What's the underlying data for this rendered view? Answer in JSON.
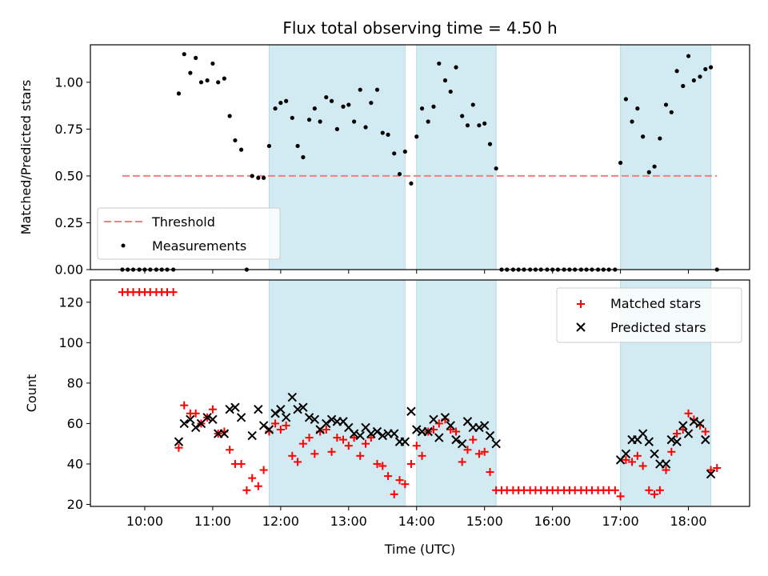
{
  "chart_data": [
    {
      "type": "scatter",
      "title": "Flux total observing time = 4.50 h",
      "xlabel": "",
      "ylabel": "Matched/Predicted stars",
      "xlim": [
        9.2,
        18.9
      ],
      "ylim": [
        0.0,
        1.2
      ],
      "yticks": [
        0.0,
        0.25,
        0.5,
        0.75,
        1.0
      ],
      "ytick_labels": [
        "0.00",
        "0.25",
        "0.50",
        "0.75",
        "1.00"
      ],
      "xticks": [
        10,
        11,
        12,
        13,
        14,
        15,
        16,
        17,
        18
      ],
      "legend": {
        "position": "bottom-left",
        "entries": [
          "Threshold",
          "Measurements"
        ]
      },
      "threshold": {
        "name": "Threshold",
        "value": 0.5,
        "x_range": [
          9.67,
          18.42
        ],
        "color": "#f08080"
      },
      "series": [
        {
          "name": "Measurements",
          "color": "#000000",
          "x": [
            9.67,
            9.75,
            9.83,
            9.92,
            10.0,
            10.08,
            10.17,
            10.25,
            10.33,
            10.42,
            10.5,
            10.58,
            10.67,
            10.75,
            10.83,
            10.92,
            11.0,
            11.08,
            11.17,
            11.25,
            11.33,
            11.42,
            11.5,
            11.58,
            11.67,
            11.75,
            11.83,
            11.92,
            12.0,
            12.08,
            12.17,
            12.25,
            12.33,
            12.42,
            12.5,
            12.58,
            12.67,
            12.75,
            12.83,
            12.92,
            13.0,
            13.08,
            13.17,
            13.25,
            13.33,
            13.42,
            13.5,
            13.58,
            13.67,
            13.75,
            13.83,
            13.92,
            14.0,
            14.08,
            14.17,
            14.25,
            14.33,
            14.42,
            14.5,
            14.58,
            14.67,
            14.75,
            14.83,
            14.92,
            15.0,
            15.08,
            15.17,
            15.25,
            15.33,
            15.42,
            15.5,
            15.58,
            15.67,
            15.75,
            15.83,
            15.92,
            16.0,
            16.08,
            16.17,
            16.25,
            16.33,
            16.42,
            16.5,
            16.58,
            16.67,
            16.75,
            16.83,
            16.92,
            17.0,
            17.08,
            17.17,
            17.25,
            17.33,
            17.42,
            17.5,
            17.58,
            17.67,
            17.75,
            17.83,
            17.92,
            18.0,
            18.08,
            18.17,
            18.25,
            18.33,
            18.42
          ],
          "y": [
            0,
            0,
            0,
            0,
            0,
            0,
            0,
            0,
            0,
            0,
            0.94,
            1.15,
            1.05,
            1.13,
            1.0,
            1.01,
            1.1,
            1.0,
            1.02,
            0.82,
            0.69,
            0.64,
            0.0,
            0.5,
            0.49,
            0.49,
            0.66,
            0.86,
            0.89,
            0.9,
            0.81,
            0.66,
            0.6,
            0.8,
            0.86,
            0.79,
            0.92,
            0.9,
            0.75,
            0.87,
            0.88,
            0.79,
            0.96,
            0.76,
            0.89,
            0.96,
            0.73,
            0.72,
            0.62,
            0.51,
            0.63,
            0.46,
            0.71,
            0.86,
            0.79,
            0.87,
            1.1,
            1.01,
            0.95,
            1.08,
            0.82,
            0.77,
            0.88,
            0.77,
            0.78,
            0.67,
            0.54,
            0,
            0,
            0,
            0,
            0,
            0,
            0,
            0,
            0,
            0,
            0,
            0,
            0,
            0,
            0,
            0,
            0,
            0,
            0,
            0,
            0,
            0.57,
            0.91,
            0.79,
            0.86,
            0.71,
            0.52,
            0.55,
            0.7,
            0.88,
            0.84,
            1.06,
            0.98,
            1.14,
            1.01,
            1.03,
            1.07,
            1.08,
            0.0
          ]
        }
      ],
      "shaded_regions": [
        [
          11.83,
          13.83
        ],
        [
          14.0,
          15.17
        ],
        [
          17.0,
          18.33
        ]
      ],
      "shade_color": "#add8e6"
    },
    {
      "type": "scatter",
      "title": "",
      "xlabel": "Time (UTC)",
      "ylabel": "Count",
      "xlim": [
        9.2,
        18.9
      ],
      "ylim": [
        19,
        131
      ],
      "yticks": [
        20,
        40,
        60,
        80,
        100,
        120
      ],
      "xticks": [
        10,
        11,
        12,
        13,
        14,
        15,
        16,
        17,
        18
      ],
      "xtick_labels": [
        "10:00",
        "11:00",
        "12:00",
        "13:00",
        "14:00",
        "15:00",
        "16:00",
        "17:00",
        "18:00"
      ],
      "legend": {
        "position": "top-right",
        "entries": [
          "Matched stars",
          "Predicted stars"
        ]
      },
      "series": [
        {
          "name": "Matched stars",
          "marker": "plus",
          "color": "#ff0000",
          "x": [
            9.67,
            9.75,
            9.83,
            9.92,
            10.0,
            10.08,
            10.17,
            10.25,
            10.33,
            10.42,
            10.5,
            10.58,
            10.67,
            10.75,
            10.83,
            10.92,
            11.0,
            11.08,
            11.17,
            11.25,
            11.33,
            11.42,
            11.5,
            11.58,
            11.67,
            11.75,
            11.83,
            11.92,
            12.0,
            12.08,
            12.17,
            12.25,
            12.33,
            12.42,
            12.5,
            12.58,
            12.67,
            12.75,
            12.83,
            12.92,
            13.0,
            13.08,
            13.17,
            13.25,
            13.33,
            13.42,
            13.5,
            13.58,
            13.67,
            13.75,
            13.83,
            13.92,
            14.0,
            14.08,
            14.17,
            14.25,
            14.33,
            14.42,
            14.5,
            14.58,
            14.67,
            14.75,
            14.83,
            14.92,
            15.0,
            15.08,
            15.17,
            15.25,
            15.33,
            15.42,
            15.5,
            15.58,
            15.67,
            15.75,
            15.83,
            15.92,
            16.0,
            16.08,
            16.17,
            16.25,
            16.33,
            16.42,
            16.5,
            16.58,
            16.67,
            16.75,
            16.83,
            16.92,
            17.0,
            17.08,
            17.17,
            17.25,
            17.33,
            17.42,
            17.5,
            17.58,
            17.67,
            17.75,
            17.83,
            17.92,
            18.0,
            18.08,
            18.17,
            18.25,
            18.33,
            18.42
          ],
          "y": [
            125,
            125,
            125,
            125,
            125,
            125,
            125,
            125,
            125,
            125,
            48,
            69,
            65,
            65,
            60,
            63,
            67,
            55,
            56,
            47,
            40,
            40,
            27,
            33,
            29,
            37,
            56,
            60,
            57,
            59,
            44,
            41,
            50,
            53,
            45,
            56,
            57,
            46,
            53,
            52,
            49,
            53,
            44,
            50,
            53,
            40,
            39,
            34,
            25,
            32,
            30,
            40,
            49,
            44,
            56,
            57,
            60,
            62,
            57,
            56,
            41,
            47,
            52,
            45,
            46,
            36,
            27,
            27,
            27,
            27,
            27,
            27,
            27,
            27,
            27,
            27,
            27,
            27,
            27,
            27,
            27,
            27,
            27,
            27,
            27,
            27,
            27,
            27,
            24,
            42,
            41,
            44,
            39,
            27,
            25,
            27,
            37,
            46,
            55,
            57,
            65,
            62,
            59,
            56,
            37,
            38
          ]
        },
        {
          "name": "Predicted stars",
          "marker": "x",
          "color": "#000000",
          "x": [
            10.5,
            10.58,
            10.67,
            10.75,
            10.83,
            10.92,
            11.0,
            11.08,
            11.17,
            11.25,
            11.33,
            11.42,
            11.58,
            11.67,
            11.75,
            11.83,
            11.92,
            12.0,
            12.08,
            12.17,
            12.25,
            12.33,
            12.42,
            12.5,
            12.58,
            12.67,
            12.75,
            12.83,
            12.92,
            13.0,
            13.08,
            13.17,
            13.25,
            13.33,
            13.42,
            13.5,
            13.58,
            13.67,
            13.75,
            13.83,
            13.92,
            14.0,
            14.08,
            14.17,
            14.25,
            14.33,
            14.42,
            14.5,
            14.58,
            14.67,
            14.75,
            14.83,
            14.92,
            15.0,
            15.08,
            15.17,
            17.0,
            17.08,
            17.17,
            17.25,
            17.33,
            17.42,
            17.5,
            17.58,
            17.67,
            17.75,
            17.83,
            17.92,
            18.0,
            18.08,
            18.17,
            18.25,
            18.33
          ],
          "y": [
            51,
            60,
            62,
            58,
            60,
            63,
            62,
            55,
            55,
            67,
            68,
            63,
            54,
            67,
            59,
            57,
            65,
            67,
            63,
            73,
            67,
            68,
            63,
            62,
            57,
            60,
            62,
            61,
            61,
            58,
            55,
            54,
            58,
            55,
            56,
            54,
            55,
            55,
            51,
            51,
            66,
            57,
            56,
            56,
            62,
            53,
            63,
            59,
            52,
            50,
            61,
            58,
            58,
            59,
            54,
            50,
            42,
            45,
            52,
            52,
            55,
            51,
            45,
            40,
            40,
            52,
            51,
            59,
            55,
            61,
            60,
            52,
            35
          ]
        }
      ],
      "shaded_regions": [
        [
          11.83,
          13.83
        ],
        [
          14.0,
          15.17
        ],
        [
          17.0,
          18.33
        ]
      ],
      "shade_color": "#add8e6"
    }
  ]
}
